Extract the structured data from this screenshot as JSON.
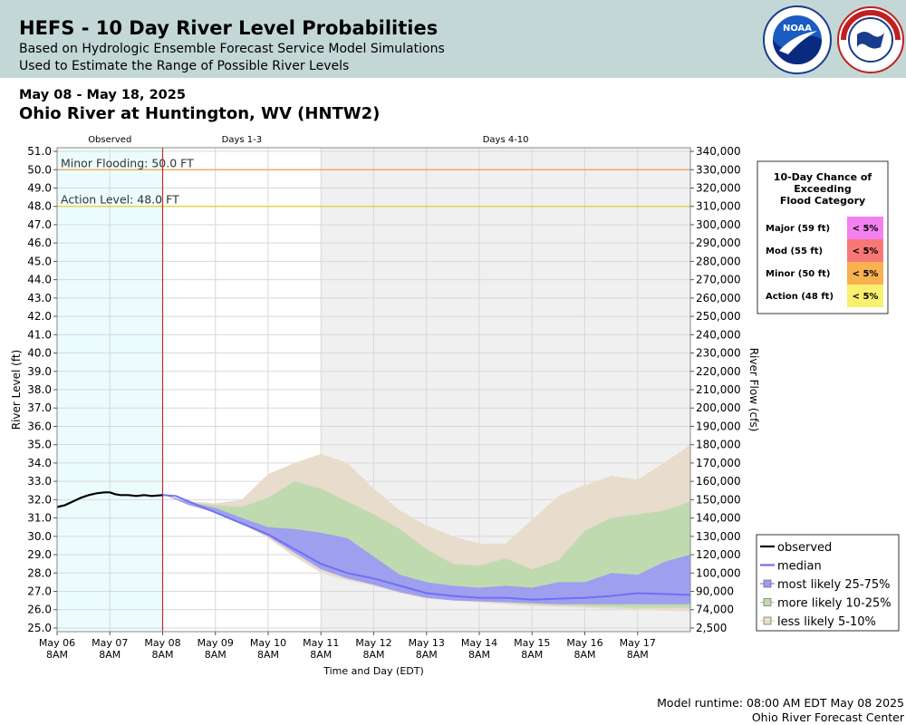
{
  "header": {
    "title": "HEFS - 10 Day River Level Probabilities",
    "subtitle1": "Based on Hydrologic Ensemble Forecast Service Model Simulations",
    "subtitle2": "Used to Estimate the Range of Possible River Levels",
    "logo_left": "noara-logo",
    "logo_right": "nws-logo"
  },
  "date_range": "May 08 - May 18, 2025",
  "station": "Ohio River at Huntington, WV (HNTW2)",
  "footer": {
    "runtime": "Model runtime: 08:00 AM EDT May 08 2025",
    "center": "Ohio River Forecast Center"
  },
  "chart_data": {
    "type": "area",
    "period_labels": [
      "Observed",
      "Days 1-3",
      "Days 4-10"
    ],
    "ylabel": "River Level (ft)",
    "y2label": "River Flow (cfs)",
    "xlabel": "Time and Day (EDT)",
    "ylim": [
      24.8,
      51.2
    ],
    "yticks": [
      25.0,
      26.0,
      27.0,
      28.0,
      29.0,
      30.0,
      31.0,
      32.0,
      33.0,
      34.0,
      35.0,
      36.0,
      37.0,
      38.0,
      39.0,
      40.0,
      41.0,
      42.0,
      43.0,
      44.0,
      45.0,
      46.0,
      47.0,
      48.0,
      49.0,
      50.0,
      51.0
    ],
    "y2ticks": [
      {
        "level": 25.0,
        "label": "2,500"
      },
      {
        "level": 26.0,
        "label": "74,000"
      },
      {
        "level": 27.0,
        "label": "90,000"
      },
      {
        "level": 28.0,
        "label": "100,000"
      },
      {
        "level": 29.0,
        "label": "120,000"
      },
      {
        "level": 30.0,
        "label": "130,000"
      },
      {
        "level": 31.0,
        "label": "140,000"
      },
      {
        "level": 32.0,
        "label": "150,000"
      },
      {
        "level": 33.0,
        "label": "160,000"
      },
      {
        "level": 34.0,
        "label": "170,000"
      },
      {
        "level": 35.0,
        "label": "180,000"
      },
      {
        "level": 36.0,
        "label": "190,000"
      },
      {
        "level": 37.0,
        "label": "200,000"
      },
      {
        "level": 38.0,
        "label": "210,000"
      },
      {
        "level": 39.0,
        "label": "220,000"
      },
      {
        "level": 40.0,
        "label": "230,000"
      },
      {
        "level": 41.0,
        "label": "240,000"
      },
      {
        "level": 42.0,
        "label": "250,000"
      },
      {
        "level": 43.0,
        "label": "260,000"
      },
      {
        "level": 44.0,
        "label": "270,000"
      },
      {
        "level": 45.0,
        "label": "280,000"
      },
      {
        "level": 46.0,
        "label": "290,000"
      },
      {
        "level": 47.0,
        "label": "300,000"
      },
      {
        "level": 48.0,
        "label": "310,000"
      },
      {
        "level": 49.0,
        "label": "320,000"
      },
      {
        "level": 50.0,
        "label": "330,000"
      },
      {
        "level": 51.0,
        "label": "340,000"
      }
    ],
    "y2ticks_note": "",
    "xlim_days": [
      6.0,
      18.0
    ],
    "xticks": [
      {
        "day": 6,
        "label1": "May 06",
        "label2": "8AM"
      },
      {
        "day": 7,
        "label1": "May 07",
        "label2": "8AM"
      },
      {
        "day": 8,
        "label1": "May 08",
        "label2": "8AM"
      },
      {
        "day": 9,
        "label1": "May 09",
        "label2": "8AM"
      },
      {
        "day": 10,
        "label1": "May 10",
        "label2": "8AM"
      },
      {
        "day": 11,
        "label1": "May 11",
        "label2": "8AM"
      },
      {
        "day": 12,
        "label1": "May 12",
        "label2": "8AM"
      },
      {
        "day": 13,
        "label1": "May 13",
        "label2": "8AM"
      },
      {
        "day": 14,
        "label1": "May 14",
        "label2": "8AM"
      },
      {
        "day": 15,
        "label1": "May 15",
        "label2": "8AM"
      },
      {
        "day": 16,
        "label1": "May 16",
        "label2": "8AM"
      },
      {
        "day": 17,
        "label1": "May 17",
        "label2": "8AM"
      }
    ],
    "observed_end_day": 8,
    "days13_end_day": 11,
    "flood_lines": [
      {
        "level": 50.0,
        "label": "Minor Flooding: 50.0 FT",
        "color": "#f0a050"
      },
      {
        "level": 48.0,
        "label": "Action Level: 48.0 FT",
        "color": "#e8d030"
      }
    ],
    "observed": {
      "name": "observed",
      "x": [
        6.0,
        6.15,
        6.3,
        6.45,
        6.6,
        6.75,
        6.9,
        7.0,
        7.1,
        7.2,
        7.35,
        7.5,
        7.65,
        7.8,
        8.0
      ],
      "y": [
        31.6,
        31.7,
        31.9,
        32.1,
        32.25,
        32.35,
        32.4,
        32.4,
        32.3,
        32.25,
        32.25,
        32.2,
        32.25,
        32.2,
        32.25
      ]
    },
    "median": {
      "name": "median",
      "x": [
        8.0,
        8.25,
        8.5,
        9.0,
        9.5,
        10.0,
        10.5,
        11.0,
        11.5,
        12.0,
        12.5,
        13.0,
        13.5,
        14.0,
        14.5,
        15.0,
        15.5,
        16.0,
        16.5,
        17.0,
        17.5,
        18.0
      ],
      "y": [
        32.25,
        32.2,
        31.9,
        31.3,
        30.7,
        30.1,
        29.3,
        28.5,
        28.0,
        27.7,
        27.3,
        26.9,
        26.75,
        26.65,
        26.65,
        26.55,
        26.6,
        26.65,
        26.75,
        26.9,
        26.85,
        26.8
      ]
    },
    "bands": [
      {
        "name": "less likely 5-10%",
        "color": "#e8dccc",
        "x": [
          8.0,
          8.5,
          9.0,
          9.5,
          10.0,
          10.5,
          11.0,
          11.5,
          12.0,
          12.5,
          13.0,
          13.5,
          14.0,
          14.5,
          15.0,
          15.5,
          16.0,
          16.5,
          17.0,
          17.5,
          18.0
        ],
        "upper": [
          32.3,
          31.9,
          31.8,
          32.0,
          33.4,
          34.0,
          34.5,
          34.0,
          32.6,
          31.4,
          30.6,
          30.0,
          29.6,
          29.6,
          30.9,
          32.2,
          32.8,
          33.3,
          33.1,
          34.0,
          35.0
        ],
        "lower": [
          32.3,
          31.7,
          31.3,
          30.7,
          29.9,
          28.9,
          28.0,
          27.6,
          27.3,
          26.9,
          26.6,
          26.5,
          26.4,
          26.3,
          26.2,
          26.15,
          26.1,
          26.05,
          26.0,
          25.95,
          25.9
        ]
      },
      {
        "name": "more likely 10-25%",
        "color": "#c0dab0",
        "x": [
          8.0,
          8.5,
          9.0,
          9.5,
          10.0,
          10.5,
          11.0,
          11.5,
          12.0,
          12.5,
          13.0,
          13.5,
          14.0,
          14.5,
          15.0,
          15.5,
          16.0,
          16.5,
          17.0,
          17.5,
          18.0
        ],
        "upper": [
          32.3,
          31.85,
          31.7,
          31.6,
          32.1,
          33.0,
          32.6,
          31.9,
          31.2,
          30.4,
          29.3,
          28.5,
          28.4,
          28.8,
          28.2,
          28.7,
          30.3,
          31.0,
          31.2,
          31.4,
          31.9
        ],
        "lower": [
          32.3,
          31.7,
          31.35,
          30.8,
          30.1,
          29.2,
          28.3,
          27.8,
          27.4,
          27.0,
          26.7,
          26.55,
          26.5,
          26.4,
          26.3,
          26.25,
          26.2,
          26.15,
          26.1,
          26.1,
          26.1
        ]
      },
      {
        "name": "most likely 25-75%",
        "color": "#9c9cf2",
        "x": [
          8.0,
          8.5,
          9.0,
          9.5,
          10.0,
          10.5,
          11.0,
          11.5,
          12.0,
          12.5,
          13.0,
          13.5,
          14.0,
          14.5,
          15.0,
          15.5,
          16.0,
          16.5,
          17.0,
          17.5,
          18.0
        ],
        "upper": [
          32.3,
          31.85,
          31.55,
          31.0,
          30.5,
          30.4,
          30.2,
          29.9,
          28.9,
          27.9,
          27.5,
          27.3,
          27.2,
          27.3,
          27.2,
          27.5,
          27.5,
          28.0,
          27.9,
          28.6,
          29.0
        ],
        "lower": [
          32.3,
          31.7,
          31.3,
          30.7,
          30.0,
          29.1,
          28.2,
          27.7,
          27.35,
          26.95,
          26.65,
          26.5,
          26.45,
          26.4,
          26.35,
          26.3,
          26.3,
          26.3,
          26.3,
          26.3,
          26.3
        ]
      }
    ],
    "legend": [
      {
        "label": "observed",
        "kind": "line",
        "color": "#000000"
      },
      {
        "label": "median",
        "kind": "line",
        "color": "#7070f0"
      },
      {
        "label": "most likely 25-75%",
        "kind": "box",
        "color": "#9c9cf2"
      },
      {
        "label": "more likely 10-25%",
        "kind": "box",
        "color": "#c0dab0"
      },
      {
        "label": "less likely 5-10%",
        "kind": "box",
        "color": "#e8dccc"
      }
    ],
    "exceedance_table": {
      "title1": "10-Day Chance of",
      "title2": "Exceeding",
      "title3": "Flood Category",
      "rows": [
        {
          "label": "Major (59 ft)",
          "value": "< 5%",
          "color": "#f480f0"
        },
        {
          "label": "Mod (55 ft)",
          "value": "< 5%",
          "color": "#f87878"
        },
        {
          "label": "Minor (50 ft)",
          "value": "< 5%",
          "color": "#f8b050"
        },
        {
          "label": "Action (48 ft)",
          "value": "< 5%",
          "color": "#f8f070"
        }
      ]
    }
  }
}
